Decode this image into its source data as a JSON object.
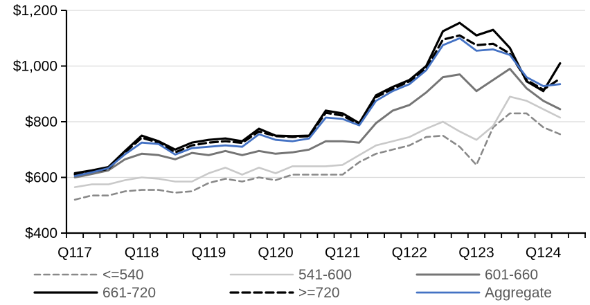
{
  "chart_data": {
    "type": "line",
    "title": "",
    "quarters": [
      "2017Q1",
      "2017Q2",
      "2017Q3",
      "2017Q4",
      "2018Q1",
      "2018Q2",
      "2018Q3",
      "2018Q4",
      "2019Q1",
      "2019Q2",
      "2019Q3",
      "2019Q4",
      "2020Q1",
      "2020Q2",
      "2020Q3",
      "2020Q4",
      "2021Q1",
      "2021Q2",
      "2021Q3",
      "2021Q4",
      "2022Q1",
      "2022Q2",
      "2022Q3",
      "2022Q4",
      "2023Q1",
      "2023Q2",
      "2023Q3",
      "2023Q4",
      "2024Q1",
      "2024Q2"
    ],
    "x_tick_labels": [
      "Q117",
      "Q118",
      "Q119",
      "Q120",
      "Q121",
      "Q122",
      "Q123",
      "Q124"
    ],
    "x_tick_slot_indices": [
      0,
      4,
      8,
      12,
      16,
      20,
      24,
      28
    ],
    "y_tick_labels": [
      "$400",
      "$600",
      "$800",
      "$1,000",
      "$1,200"
    ],
    "y_tick_values": [
      400,
      600,
      800,
      1000,
      1200
    ],
    "ylim": [
      400,
      1200
    ],
    "n_slots": 31,
    "grid": "horizontal",
    "legend_position": "bottom",
    "series": [
      {
        "name": "<=540",
        "color": "#898989",
        "dash": "8 5.5",
        "width": 2.6,
        "values": [
          520,
          535,
          535,
          550,
          555,
          555,
          545,
          550,
          580,
          595,
          585,
          600,
          590,
          610,
          610,
          610,
          610,
          655,
          685,
          700,
          715,
          745,
          750,
          710,
          645,
          780,
          830,
          830,
          780,
          755
        ]
      },
      {
        "name": "541-600",
        "color": "#C9C9C9",
        "dash": null,
        "width": 2.6,
        "values": [
          565,
          575,
          575,
          590,
          600,
          595,
          585,
          585,
          615,
          635,
          610,
          635,
          615,
          640,
          640,
          640,
          645,
          680,
          715,
          730,
          745,
          775,
          800,
          765,
          735,
          785,
          890,
          875,
          845,
          815
        ]
      },
      {
        "name": "601-660",
        "color": "#757575",
        "dash": null,
        "width": 3,
        "values": [
          600,
          612,
          625,
          665,
          685,
          680,
          665,
          688,
          680,
          695,
          680,
          695,
          685,
          690,
          700,
          730,
          730,
          725,
          795,
          840,
          860,
          905,
          960,
          970,
          910,
          950,
          990,
          920,
          875,
          845
        ]
      },
      {
        "name": "661-720",
        "color": "#000000",
        "dash": null,
        "width": 3.2,
        "values": [
          615,
          625,
          637,
          695,
          750,
          730,
          700,
          725,
          735,
          740,
          730,
          775,
          750,
          748,
          750,
          840,
          830,
          795,
          895,
          925,
          950,
          1000,
          1125,
          1155,
          1110,
          1130,
          1065,
          945,
          910,
          1010
        ]
      },
      {
        "name": ">=720",
        "color": "#000000",
        "dash": "11 6",
        "width": 3.2,
        "values": [
          610,
          620,
          630,
          690,
          742,
          725,
          690,
          715,
          725,
          730,
          724,
          765,
          748,
          745,
          748,
          832,
          822,
          790,
          888,
          918,
          945,
          990,
          1095,
          1110,
          1075,
          1080,
          1045,
          950,
          915,
          955
        ]
      },
      {
        "name": "Aggregate",
        "color": "#4472C4",
        "dash": null,
        "width": 2.8,
        "values": [
          605,
          618,
          633,
          683,
          725,
          720,
          682,
          705,
          710,
          715,
          710,
          755,
          735,
          730,
          740,
          815,
          810,
          787,
          875,
          910,
          935,
          985,
          1075,
          1100,
          1055,
          1060,
          1040,
          960,
          928,
          935
        ]
      }
    ],
    "colors": {
      "grid": "#D9D9D9",
      "axis": "#000000",
      "tick_label": "#000000",
      "legend_text": "#595959",
      "background": "#FFFFFF"
    }
  }
}
